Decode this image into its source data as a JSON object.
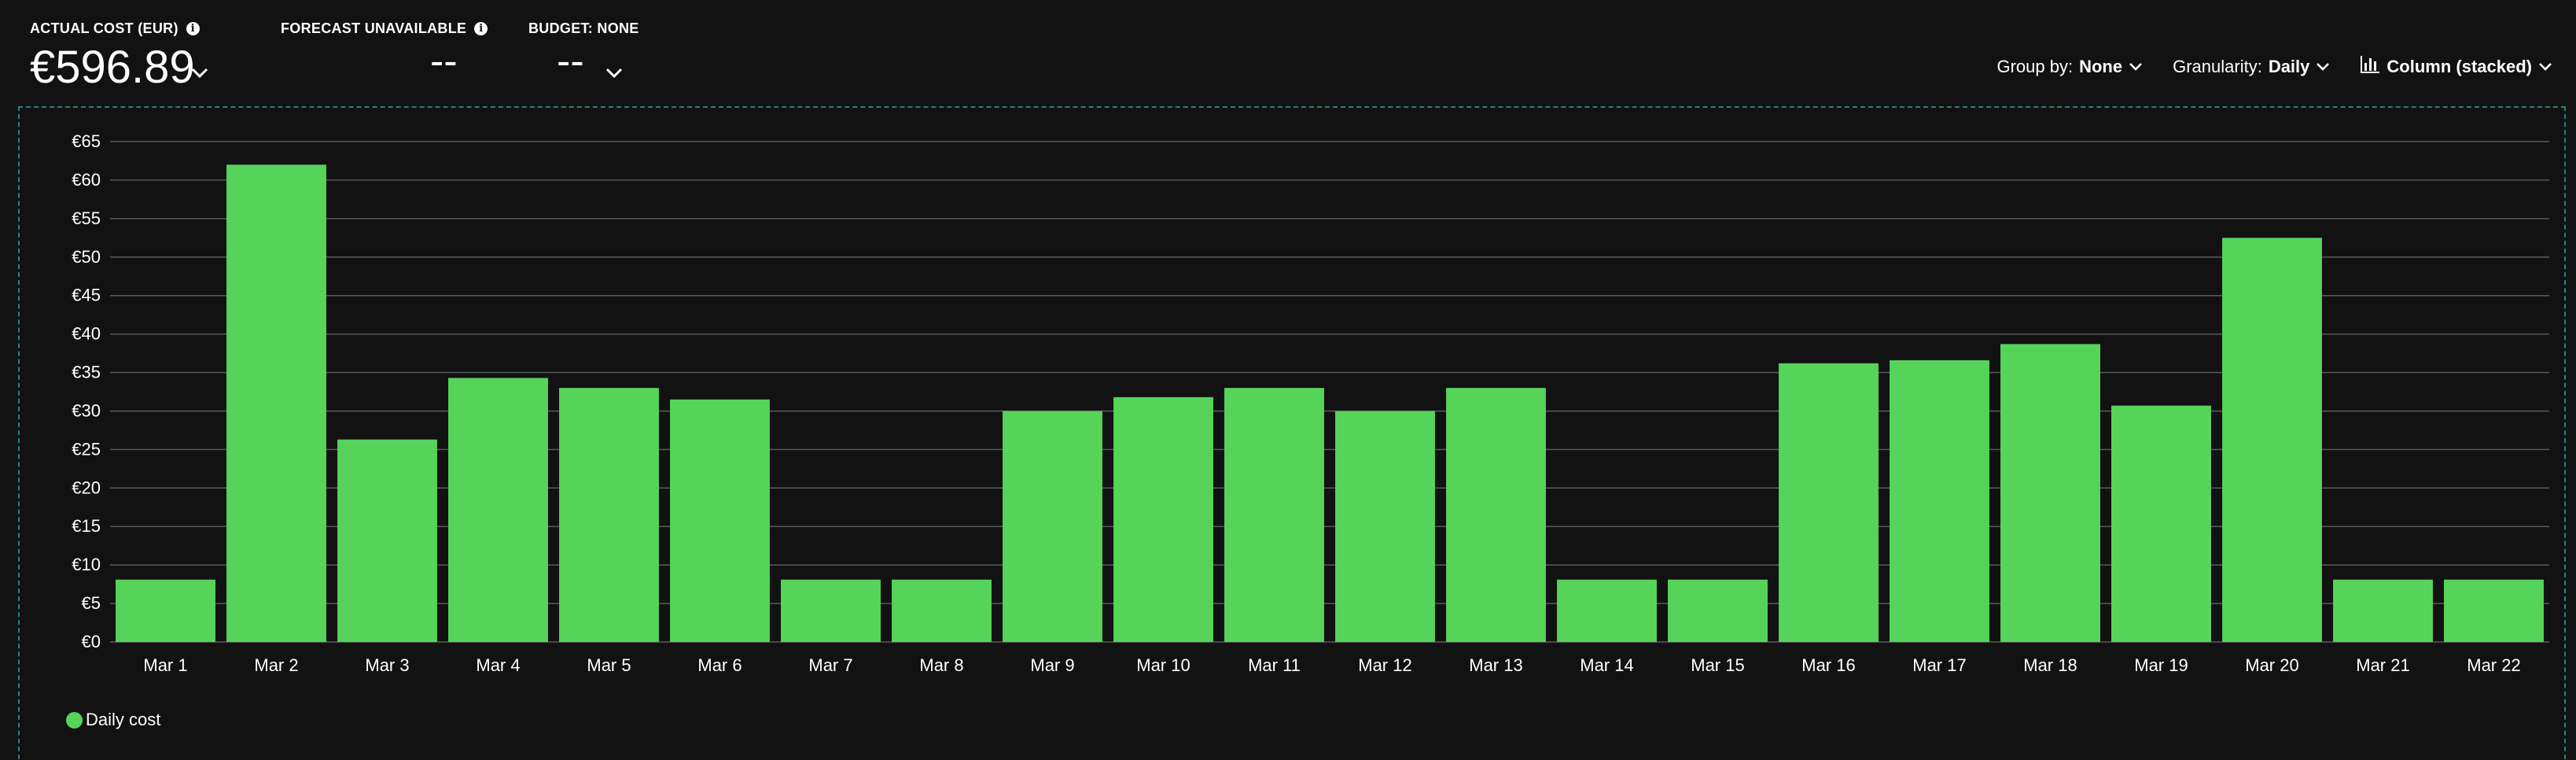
{
  "kpis": {
    "actual_cost": {
      "label": "ACTUAL COST (EUR)",
      "value": "€596.89"
    },
    "forecast": {
      "label": "FORECAST UNAVAILABLE",
      "value": "--"
    },
    "budget": {
      "label": "BUDGET: NONE",
      "value": "--"
    }
  },
  "toolbar": {
    "group_by": {
      "label": "Group by:",
      "value": "None"
    },
    "granularity": {
      "label": "Granularity:",
      "value": "Daily"
    },
    "chart_type": {
      "value": "Column (stacked)",
      "icon": "bar-chart-icon"
    }
  },
  "colors": {
    "bar": "#56d45a",
    "background": "#121212",
    "gridline": "#5a5a5a",
    "frame": "#2a7e82"
  },
  "chart_data": {
    "type": "bar",
    "categories": [
      "Mar 1",
      "Mar 2",
      "Mar 3",
      "Mar 4",
      "Mar 5",
      "Mar 6",
      "Mar 7",
      "Mar 8",
      "Mar 9",
      "Mar 10",
      "Mar 11",
      "Mar 12",
      "Mar 13",
      "Mar 14",
      "Mar 15",
      "Mar 16",
      "Mar 17",
      "Mar 18",
      "Mar 19",
      "Mar 20",
      "Mar 21",
      "Mar 22"
    ],
    "series": [
      {
        "name": "Daily cost",
        "values": [
          8.1,
          62.0,
          26.3,
          34.3,
          33.0,
          31.5,
          8.1,
          8.1,
          30.0,
          31.8,
          33.0,
          30.0,
          33.0,
          8.1,
          8.1,
          36.2,
          36.6,
          38.7,
          30.7,
          52.5,
          8.1,
          8.1
        ]
      }
    ],
    "yticks": [
      "€0",
      "€5",
      "€10",
      "€15",
      "€20",
      "€25",
      "€30",
      "€35",
      "€40",
      "€45",
      "€50",
      "€55",
      "€60",
      "€65"
    ],
    "ylim": [
      0,
      65
    ],
    "grid": true,
    "legend": "bottom-left"
  }
}
